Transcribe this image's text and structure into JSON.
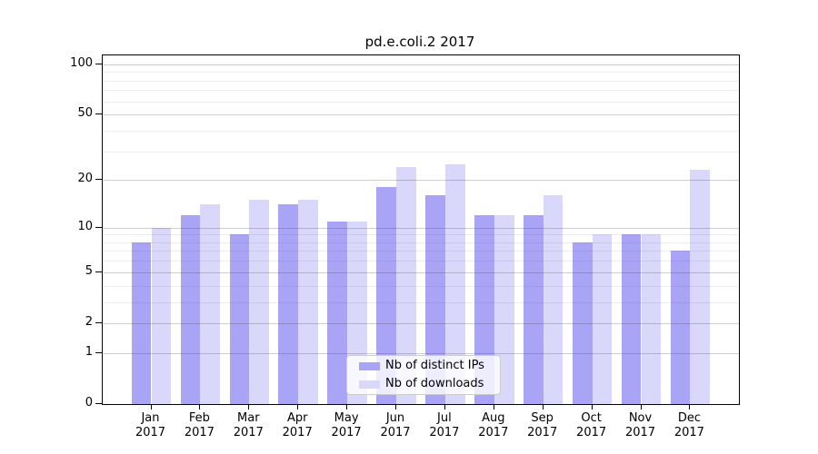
{
  "page": {
    "background": "#ffffff"
  },
  "chart_data": {
    "type": "bar",
    "title": "pd.e.coli.2 2017",
    "categories": [
      "Jan 2017",
      "Feb 2017",
      "Mar 2017",
      "Apr 2017",
      "May 2017",
      "Jun 2017",
      "Jul 2017",
      "Aug 2017",
      "Sep 2017",
      "Oct 2017",
      "Nov 2017",
      "Dec 2017"
    ],
    "series": [
      {
        "name": "Nb of distinct IPs",
        "color": "#a9a4f6",
        "values": [
          8,
          12,
          9,
          14,
          11,
          18,
          16,
          12,
          12,
          8,
          9,
          7
        ]
      },
      {
        "name": "Nb of downloads",
        "color": "#d9d7fa",
        "values": [
          10,
          14,
          15,
          15,
          11,
          24,
          25,
          12,
          16,
          9,
          9,
          23
        ]
      }
    ],
    "xlabel": "",
    "ylabel": "",
    "y_scale": "log1p",
    "y_major_ticks": [
      0,
      1,
      2,
      5,
      10,
      20,
      50,
      100
    ],
    "y_minor_ticks": [
      3,
      4,
      6,
      7,
      8,
      9,
      30,
      40,
      60,
      70,
      80,
      90
    ],
    "ylim": [
      0,
      113
    ],
    "grid": true,
    "legend_position": "lower center",
    "grid_major_color": "#c7c7c7",
    "grid_minor_color": "#ececec",
    "spine_color": "#000000"
  }
}
